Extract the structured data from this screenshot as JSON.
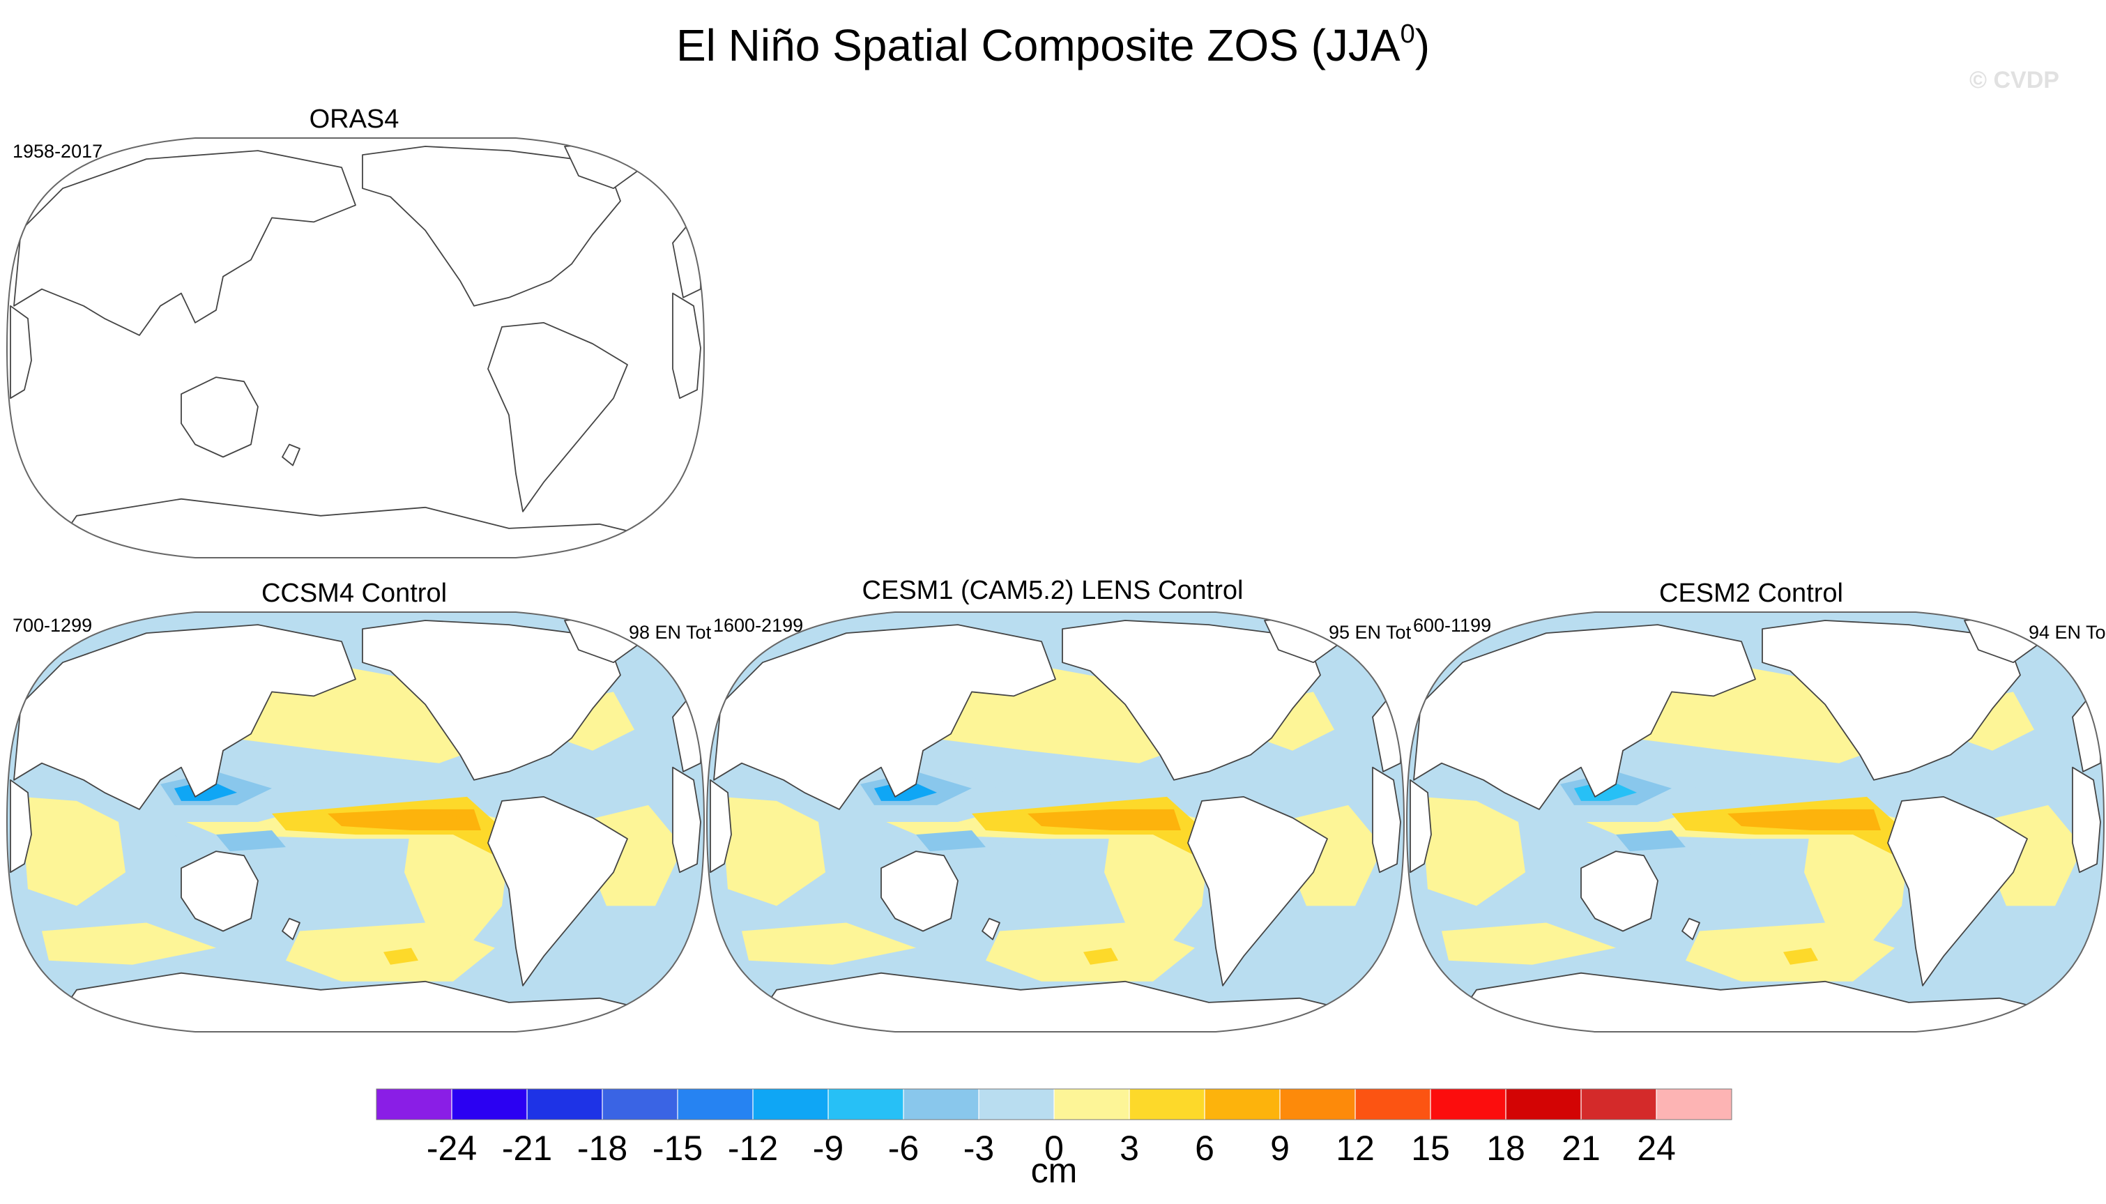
{
  "title": "El Niño Spatial Composite ZOS (JJA",
  "title_superscript": "0",
  "title_close": ")",
  "watermark": "© CVDP",
  "chart_data": {
    "type": "map",
    "variable": "ZOS",
    "season": "JJA0",
    "projection": "Robinson, Pacific-centered",
    "panels": [
      {
        "name": "ORAS4",
        "years": "1958-2017",
        "count_label": "",
        "has_data": false
      },
      {
        "name": "CCSM4 Control",
        "years": "700-1299",
        "count_label": "98 EN Tot",
        "has_data": true,
        "features": {
          "east_pacific_max_cm": 8,
          "west_pacific_min_cm": -10
        }
      },
      {
        "name": "CESM1 (CAM5.2) LENS Control",
        "years": "1600-2199",
        "count_label": "95 EN Tot",
        "has_data": true,
        "features": {
          "east_pacific_max_cm": 7,
          "west_pacific_min_cm": -11
        }
      },
      {
        "name": "CESM2 Control",
        "years": "600-1199",
        "count_label": "94 EN To",
        "has_data": true,
        "features": {
          "east_pacific_max_cm": 7,
          "west_pacific_min_cm": -8
        }
      }
    ],
    "colorbar": {
      "unit": "cm",
      "levels": [
        -24,
        -21,
        -18,
        -15,
        -12,
        -9,
        -6,
        -3,
        0,
        3,
        6,
        9,
        12,
        15,
        18,
        21,
        24
      ],
      "labels": [
        "-24",
        "-21",
        "-18",
        "-15",
        "-12",
        "-9",
        "-6",
        "-3",
        "0",
        "3",
        "6",
        "9",
        "12",
        "15",
        "18",
        "21",
        "24"
      ],
      "colors": [
        "#8a1ee6",
        "#2b00f2",
        "#1e33e6",
        "#3a64e4",
        "#2683f2",
        "#0fa6f5",
        "#27c0f6",
        "#89c7ec",
        "#b9ddf0",
        "#fdf597",
        "#fdd92a",
        "#fdb30c",
        "#fd8a0a",
        "#fc5412",
        "#fc0d0d",
        "#d30404",
        "#d42a2a",
        "#fdb4b4"
      ]
    }
  }
}
